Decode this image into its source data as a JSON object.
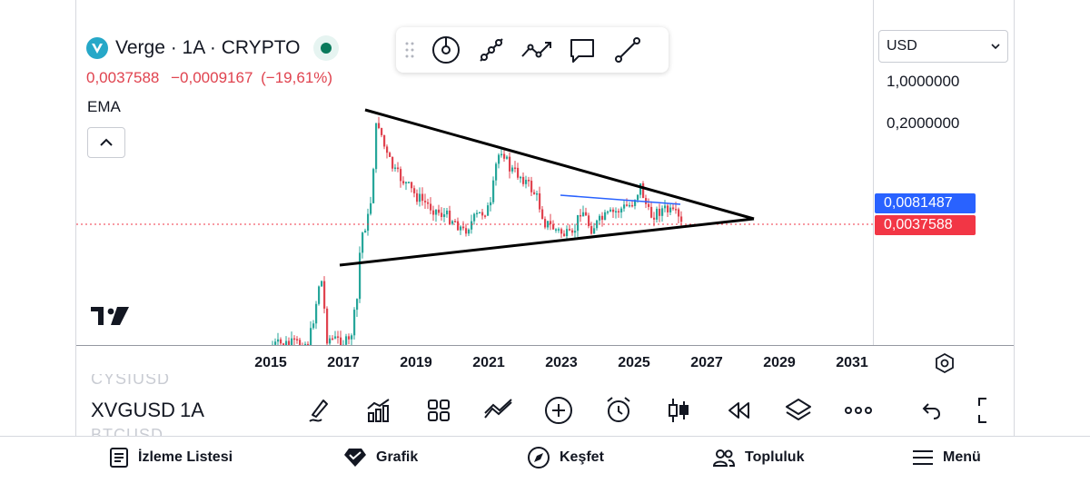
{
  "header": {
    "symbol_title": "Verge · 1A · CRYPTO",
    "last_price": "0,0037588",
    "change_abs": "−0,0009167",
    "change_pct": "(−19,61%)",
    "indicator": "EMA",
    "brand_color": "#26a8c8",
    "down_color": "#e0434f",
    "up_color": "#26a69a"
  },
  "drawing_tools": [
    {
      "name": "brush-icon"
    },
    {
      "name": "trend-line-icon"
    },
    {
      "name": "path-icon"
    },
    {
      "name": "comment-icon"
    },
    {
      "name": "line-icon"
    }
  ],
  "price_axis": {
    "currency": "USD",
    "labels": [
      "1,0000000",
      "0,2000000"
    ],
    "blue_badge": "0,0081487",
    "red_badge": "0,0037588",
    "blue_color": "#2962ff",
    "red_color": "#f23645"
  },
  "time_axis": {
    "labels": [
      "2015",
      "2017",
      "2019",
      "2021",
      "2023",
      "2025",
      "2027",
      "2029",
      "2031"
    ]
  },
  "bottom_toolbar": {
    "symbol": "XVGUSD",
    "interval": "1A",
    "ghost_above": "CYSIUSD",
    "ghost_below": "BTCUSD",
    "icons": [
      "brush-icon",
      "indicators-icon",
      "layout-icon",
      "compare-icon",
      "add-icon",
      "alarm-icon",
      "candles-icon",
      "replay-icon",
      "layers-icon",
      "more-icon",
      "undo-icon"
    ]
  },
  "nav": {
    "watchlist": "İzleme Listesi",
    "chart": "Grafik",
    "explore": "Keşfet",
    "community": "Topluluk",
    "menu": "Menü"
  },
  "chart_data": {
    "type": "candlestick",
    "title": "",
    "xlabel": "",
    "ylabel": "",
    "x_ticks": [
      "2015",
      "2017",
      "2019",
      "2021",
      "2023",
      "2025",
      "2027",
      "2029",
      "2031"
    ],
    "y_scale": "log",
    "y_ticks": [
      1.0,
      0.2
    ],
    "last_price": 0.0037588,
    "ema_value": 0.0081487,
    "grid": false,
    "annotations": [
      {
        "type": "trend-line",
        "name": "upper-triangle-line"
      },
      {
        "type": "trend-line",
        "name": "lower-triangle-line"
      },
      {
        "type": "trend-line",
        "name": "blue-resistance-line"
      },
      {
        "type": "horizontal-dotted-line",
        "value": 0.0037588
      }
    ]
  }
}
